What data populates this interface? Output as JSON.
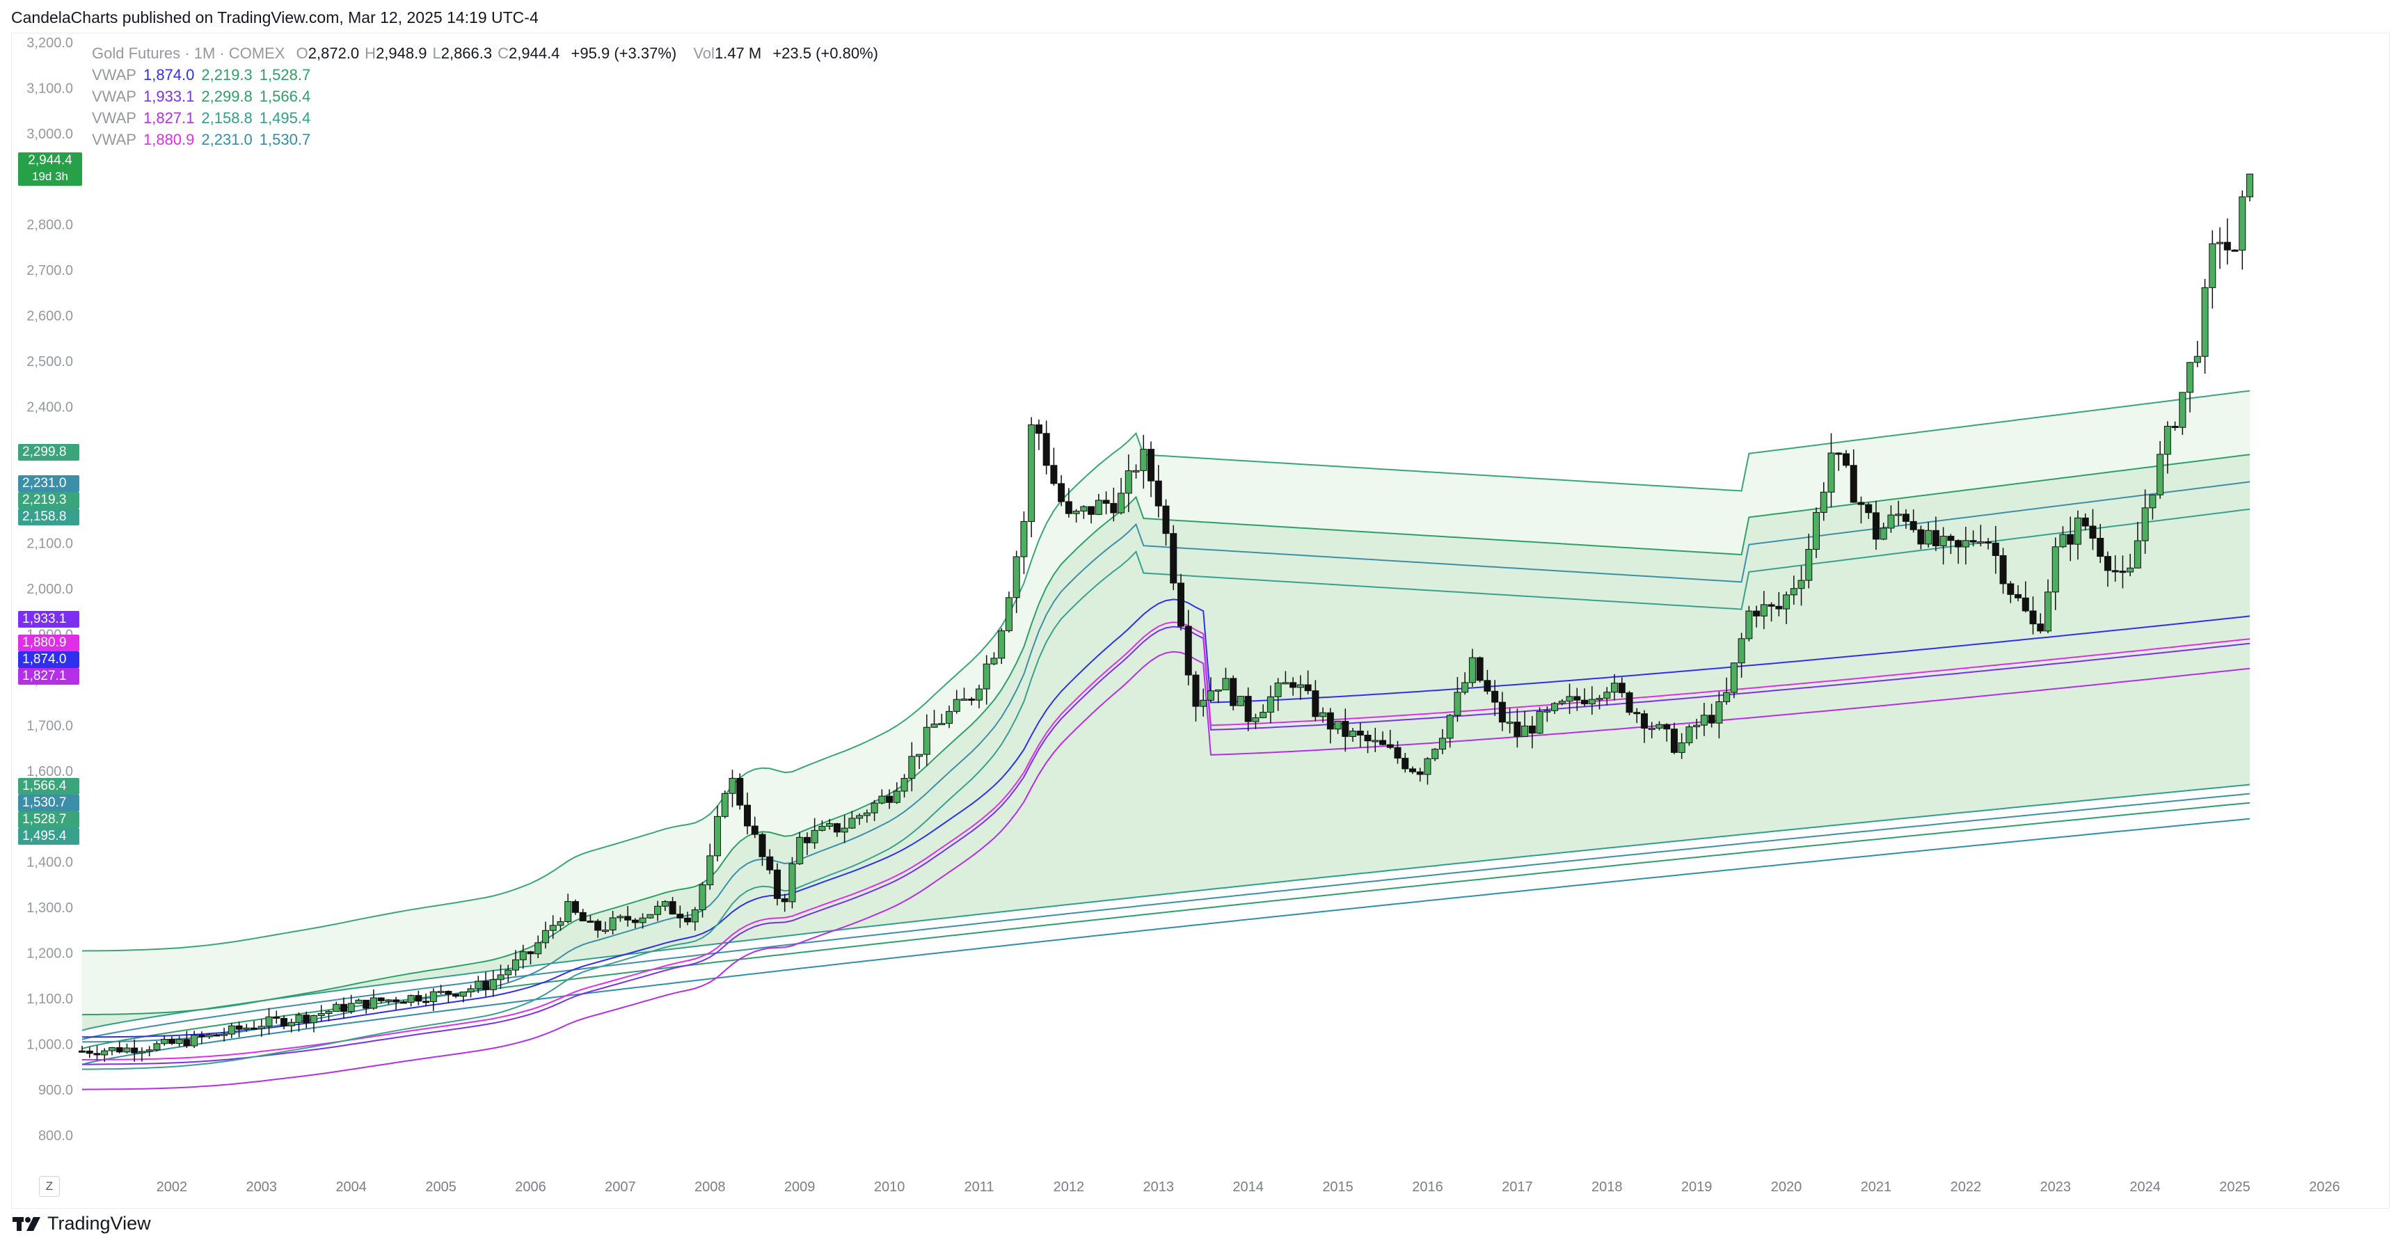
{
  "header": {
    "publisher": "CandelaCharts published on TradingView.com, Mar 12, 2025 14:19 UTC-4"
  },
  "legend": {
    "symbol": "Gold Futures · 1M · COMEX",
    "ohlc": [
      {
        "k": "O",
        "v": "2,872.0"
      },
      {
        "k": "H",
        "v": "2,948.9"
      },
      {
        "k": "L",
        "v": "2,866.3"
      },
      {
        "k": "C",
        "v": "2,944.4"
      }
    ],
    "change": "+95.9 (+3.37%)",
    "vol_label": "Vol",
    "vol_value": "1.47 M",
    "vol_change": "+23.5 (+0.80%)",
    "vwap_label": "VWAP",
    "vwap": [
      {
        "v": [
          "1,874.0",
          "2,219.3",
          "1,528.7"
        ],
        "colors": [
          "#2f2ff0",
          "#2e9f6a",
          "#2e9f6a"
        ]
      },
      {
        "v": [
          "1,933.1",
          "2,299.8",
          "1,566.4"
        ],
        "colors": [
          "#7b2ff0",
          "#2e9f6a",
          "#2e9f6a"
        ]
      },
      {
        "v": [
          "1,827.1",
          "2,158.8",
          "1,495.4"
        ],
        "colors": [
          "#b52ee8",
          "#2e9f8a",
          "#2e9f8a"
        ]
      },
      {
        "v": [
          "1,880.9",
          "2,231.0",
          "1,530.7"
        ],
        "colors": [
          "#e02ee8",
          "#2e8fa8",
          "#2e8fa8"
        ]
      }
    ]
  },
  "price_scale": {
    "badges": [
      {
        "text": "2,299.8",
        "color": "#3aa57a",
        "value": 2299.8
      },
      {
        "text": "2,231.0",
        "color": "#3c8fa8",
        "value": 2231.0
      },
      {
        "text": "2,219.3",
        "color": "#3aa57a",
        "value": 2219.3
      },
      {
        "text": "2,158.8",
        "color": "#38a08e",
        "value": 2158.8
      },
      {
        "text": "1,933.1",
        "color": "#7b2ff0",
        "value": 1933.1
      },
      {
        "text": "1,880.9",
        "color": "#e02ee8",
        "value": 1880.9
      },
      {
        "text": "1,874.0",
        "color": "#2f2ff0",
        "value": 1874.0
      },
      {
        "text": "1,827.1",
        "color": "#b52ee8",
        "value": 1827.1
      },
      {
        "text": "1,566.4",
        "color": "#3aa57a",
        "value": 1566.4
      },
      {
        "text": "1,530.7",
        "color": "#3c8fa8",
        "value": 1530.7
      },
      {
        "text": "1,528.7",
        "color": "#3aa57a",
        "value": 1528.7
      },
      {
        "text": "1,495.4",
        "color": "#38a08e",
        "value": 1495.4
      }
    ],
    "last": {
      "price": "2,944.4",
      "countdown": "19d 3h",
      "color": "#26a148"
    }
  },
  "zoom_label": "Z",
  "footer": {
    "brand": "TradingView"
  },
  "chart_data": {
    "type": "candlestick",
    "ylim": [
      750,
      3200
    ],
    "yticks": [
      800,
      900,
      1000,
      1100,
      1200,
      1300,
      1400,
      1500,
      1600,
      1700,
      1800,
      1900,
      2000,
      2100,
      2200,
      2300,
      2400,
      2500,
      2600,
      2700,
      2800,
      2900,
      3000,
      3100,
      3200
    ],
    "ytick_labels": [
      "800.0",
      "900.0",
      "1,000.0",
      "1,100.0",
      "1,200.0",
      "1,300.0",
      "1,400.0",
      "1,500.0",
      "1,600.0",
      "1,700.0",
      "1,800.0",
      "1,900.0",
      "2,000.0",
      "2,100.0",
      "2,200.0",
      "2,300.0",
      "2,400.0",
      "2,500.0",
      "2,600.0",
      "2,700.0",
      "2,800.0",
      "2,900.0",
      "3,000.0",
      "3,100.0",
      "3,200.0"
    ],
    "xticks": [
      "2002",
      "2003",
      "2004",
      "2005",
      "2006",
      "2007",
      "2008",
      "2009",
      "2010",
      "2011",
      "2012",
      "2013",
      "2014",
      "2015",
      "2016",
      "2017",
      "2018",
      "2019",
      "2020",
      "2021",
      "2022",
      "2023",
      "2024",
      "2025",
      "2026"
    ],
    "xlim": [
      2001.0,
      2026.4
    ],
    "colors": {
      "up": "#4caf60",
      "down": "#111111",
      "band_outer": "#e2f3e4"
    },
    "closes": [
      [
        2001.0,
        985
      ],
      [
        2001.5,
        990
      ],
      [
        2002.0,
        1000
      ],
      [
        2002.5,
        1020
      ],
      [
        2003.0,
        1045
      ],
      [
        2003.5,
        1060
      ],
      [
        2004.0,
        1085
      ],
      [
        2004.5,
        1100
      ],
      [
        2005.0,
        1110
      ],
      [
        2005.5,
        1130
      ],
      [
        2006.0,
        1200
      ],
      [
        2006.4,
        1300
      ],
      [
        2006.7,
        1250
      ],
      [
        2007.0,
        1270
      ],
      [
        2007.5,
        1300
      ],
      [
        2007.8,
        1280
      ],
      [
        2008.0,
        1400
      ],
      [
        2008.2,
        1600
      ],
      [
        2008.5,
        1450
      ],
      [
        2008.8,
        1300
      ],
      [
        2009.0,
        1450
      ],
      [
        2009.5,
        1480
      ],
      [
        2010.0,
        1550
      ],
      [
        2010.5,
        1700
      ],
      [
        2010.9,
        1760
      ],
      [
        2011.2,
        1880
      ],
      [
        2011.5,
        2150
      ],
      [
        2011.6,
        2390
      ],
      [
        2011.8,
        2250
      ],
      [
        2012.0,
        2150
      ],
      [
        2012.3,
        2180
      ],
      [
        2012.6,
        2200
      ],
      [
        2012.8,
        2300
      ],
      [
        2013.0,
        2200
      ],
      [
        2013.2,
        2000
      ],
      [
        2013.4,
        1750
      ],
      [
        2013.7,
        1800
      ],
      [
        2014.0,
        1720
      ],
      [
        2014.5,
        1800
      ],
      [
        2014.8,
        1720
      ],
      [
        2015.0,
        1690
      ],
      [
        2015.5,
        1650
      ],
      [
        2015.9,
        1600
      ],
      [
        2016.2,
        1700
      ],
      [
        2016.5,
        1830
      ],
      [
        2016.8,
        1720
      ],
      [
        2017.0,
        1680
      ],
      [
        2017.5,
        1740
      ],
      [
        2018.0,
        1790
      ],
      [
        2018.5,
        1700
      ],
      [
        2018.8,
        1650
      ],
      [
        2019.0,
        1700
      ],
      [
        2019.3,
        1740
      ],
      [
        2019.6,
        1960
      ],
      [
        2019.9,
        1950
      ],
      [
        2020.2,
        2050
      ],
      [
        2020.5,
        2300
      ],
      [
        2020.8,
        2200
      ],
      [
        2021.0,
        2120
      ],
      [
        2021.3,
        2170
      ],
      [
        2021.6,
        2100
      ],
      [
        2021.9,
        2080
      ],
      [
        2022.2,
        2130
      ],
      [
        2022.5,
        2000
      ],
      [
        2022.8,
        1900
      ],
      [
        2023.0,
        2080
      ],
      [
        2023.3,
        2150
      ],
      [
        2023.6,
        2060
      ],
      [
        2023.8,
        2000
      ],
      [
        2024.0,
        2180
      ],
      [
        2024.2,
        2300
      ],
      [
        2024.4,
        2420
      ],
      [
        2024.6,
        2550
      ],
      [
        2024.8,
        2790
      ],
      [
        2025.0,
        2720
      ],
      [
        2025.17,
        2944.4
      ]
    ]
  }
}
